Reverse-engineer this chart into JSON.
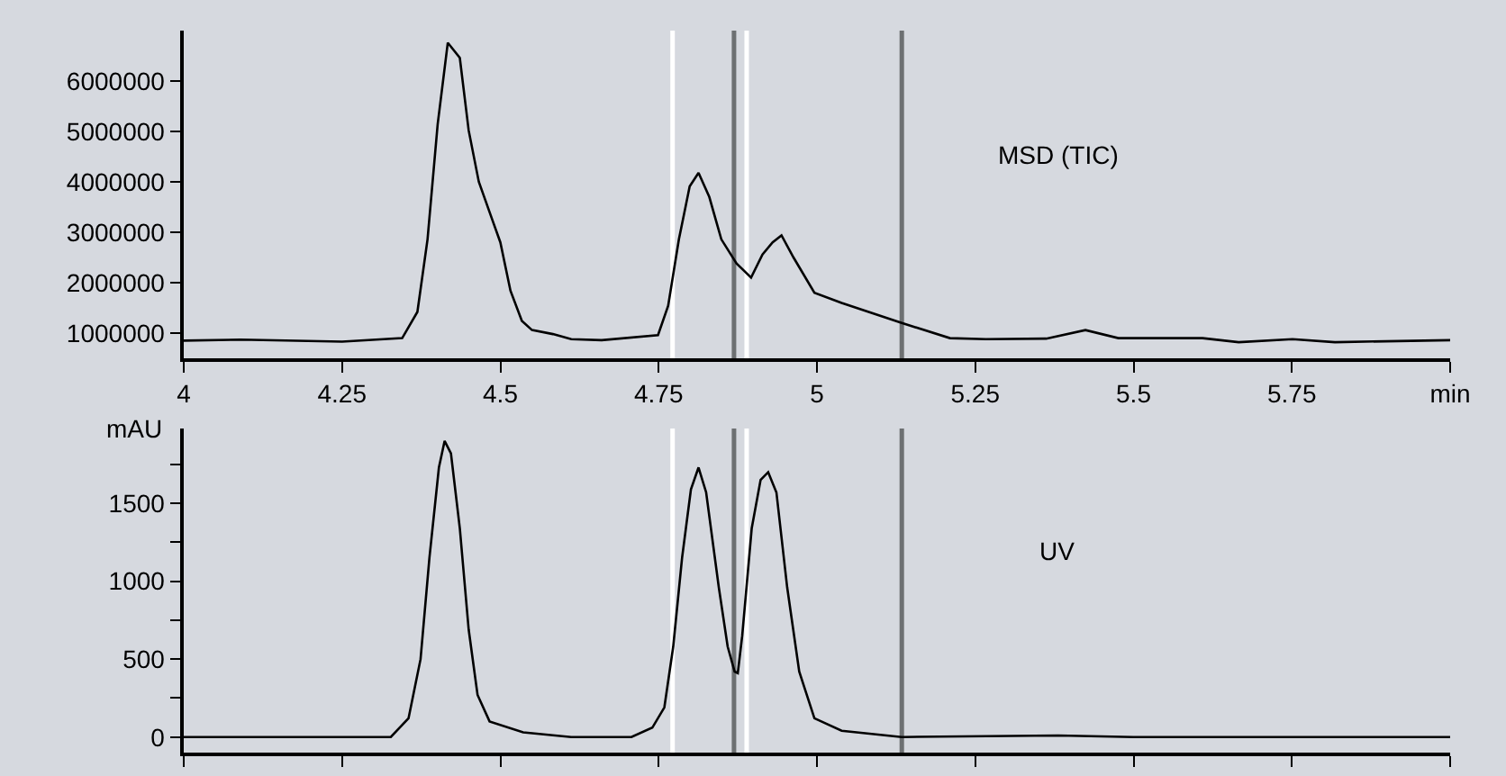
{
  "chart_data": [
    {
      "type": "line",
      "annotations": [
        "MSD (TIC)"
      ],
      "xlim": [
        4,
        6
      ],
      "xticks": [
        4,
        4.25,
        4.5,
        4.75,
        5,
        5.25,
        5.5,
        5.75,
        {
          "value": 6,
          "label": "min"
        }
      ],
      "ylim": [
        500000,
        7000000
      ],
      "yticks": [
        1000000,
        2000000,
        3000000,
        4000000,
        5000000,
        6000000
      ],
      "marker": "none",
      "line_style": "solid",
      "x": [
        4.0,
        4.089,
        4.25,
        4.345,
        4.369,
        4.385,
        4.401,
        4.417,
        4.436,
        4.45,
        4.466,
        4.483,
        4.5,
        4.516,
        4.534,
        4.55,
        4.583,
        4.612,
        4.66,
        4.749,
        4.765,
        4.782,
        4.799,
        4.813,
        4.83,
        4.849,
        4.873,
        4.896,
        4.914,
        4.93,
        4.944,
        4.963,
        4.996,
        5.039,
        5.134,
        5.21,
        5.267,
        5.362,
        5.424,
        5.476,
        5.609,
        5.666,
        5.751,
        5.818,
        6.0
      ],
      "series": [
        {
          "color": "#000000",
          "values": [
            850000,
            870000,
            830000,
            900000,
            1420000,
            2860000,
            5140000,
            6760000,
            6460000,
            5020000,
            4000000,
            3400000,
            2800000,
            1840000,
            1240000,
            1060000,
            980000,
            880000,
            860000,
            960000,
            1540000,
            2860000,
            3910000,
            4180000,
            3700000,
            2860000,
            2380000,
            2100000,
            2560000,
            2800000,
            2940000,
            2500000,
            1800000,
            1600000,
            1200000,
            900000,
            880000,
            890000,
            1060000,
            900000,
            900000,
            820000,
            880000,
            820000,
            860000
          ]
        }
      ],
      "ref_lines": [
        {
          "axis": "x",
          "value": 4.772,
          "color": "#ffffff"
        },
        {
          "axis": "x",
          "value": 4.869,
          "color": "#6d7072"
        },
        {
          "axis": "x",
          "value": 4.889,
          "color": "#ffffff"
        },
        {
          "axis": "x",
          "value": 5.134,
          "color": "#6d7072"
        }
      ]
    },
    {
      "type": "line",
      "ylabel": "mAU",
      "annotations": [
        "UV"
      ],
      "xlim": [
        4,
        6
      ],
      "tick_labels": "y",
      "xticks": [
        {
          "value": 4,
          "label": null
        },
        {
          "value": 4.25,
          "label": null
        },
        {
          "value": 4.5,
          "label": null
        },
        {
          "value": 4.75,
          "label": null
        },
        {
          "value": 5,
          "label": null
        },
        {
          "value": 5.25,
          "label": null
        },
        {
          "value": 5.5,
          "label": null
        },
        {
          "value": 5.75,
          "label": null
        },
        {
          "value": 6,
          "label": null
        }
      ],
      "ylim": [
        -100,
        1980
      ],
      "yticks": [
        0,
        {
          "value": 250,
          "label": null
        },
        500,
        {
          "value": 750,
          "label": null
        },
        1000,
        {
          "value": 1250,
          "label": null
        },
        1500,
        {
          "value": 1750,
          "label": null
        }
      ],
      "marker": "none",
      "line_style": "solid",
      "x": [
        4.0,
        4.327,
        4.355,
        4.374,
        4.388,
        4.403,
        4.412,
        4.422,
        4.436,
        4.45,
        4.464,
        4.483,
        4.536,
        4.612,
        4.707,
        4.74,
        4.759,
        4.773,
        4.787,
        4.801,
        4.813,
        4.825,
        4.845,
        4.859,
        4.87,
        4.875,
        4.882,
        4.897,
        4.911,
        4.923,
        4.936,
        4.953,
        4.972,
        4.996,
        5.039,
        5.134,
        5.381,
        5.5,
        6.0
      ],
      "series": [
        {
          "color": "#000000",
          "values": [
            0,
            0,
            120,
            500,
            1150,
            1730,
            1900,
            1820,
            1340,
            690,
            270,
            100,
            30,
            0,
            0,
            60,
            190,
            580,
            1150,
            1590,
            1730,
            1570,
            960,
            580,
            420,
            410,
            650,
            1340,
            1650,
            1700,
            1570,
            960,
            420,
            120,
            40,
            0,
            10,
            0,
            0
          ]
        }
      ],
      "ref_lines": [
        {
          "axis": "x",
          "value": 4.772,
          "color": "#ffffff"
        },
        {
          "axis": "x",
          "value": 4.869,
          "color": "#6d7072"
        },
        {
          "axis": "x",
          "value": 4.889,
          "color": "#ffffff"
        },
        {
          "axis": "x",
          "value": 5.134,
          "color": "#6d7072"
        }
      ]
    }
  ]
}
